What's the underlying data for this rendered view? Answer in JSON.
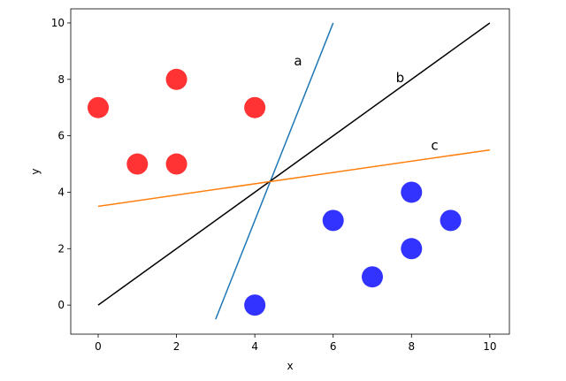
{
  "chart_data": {
    "type": "scatter",
    "xlabel": "x",
    "ylabel": "y",
    "xlim": [
      -0.7,
      10.5
    ],
    "ylim": [
      -1.03,
      10.5
    ],
    "xticks": [
      0,
      2,
      4,
      6,
      8,
      10
    ],
    "yticks": [
      0,
      2,
      4,
      6,
      8,
      10
    ],
    "series": [
      {
        "color": "#ff0000",
        "x": [
          0,
          1,
          2,
          2,
          4
        ],
        "y": [
          7,
          5,
          8,
          5,
          7
        ]
      },
      {
        "color": "#0000ff",
        "x": [
          4,
          6,
          7,
          8,
          8,
          9
        ],
        "y": [
          0,
          3,
          1,
          4,
          2,
          3
        ]
      }
    ],
    "lines": [
      {
        "color": "#1f77b4",
        "x": [
          3,
          6
        ],
        "y": [
          -0.5,
          10
        ]
      },
      {
        "color": "#000000",
        "x": [
          0,
          10
        ],
        "y": [
          0,
          10
        ]
      },
      {
        "color": "#ff7f0e",
        "x": [
          0,
          10
        ],
        "y": [
          3.5,
          5.5
        ]
      }
    ],
    "annotations": [
      {
        "text": "a",
        "x": 5,
        "y": 8.5
      },
      {
        "text": "b",
        "x": 7.6,
        "y": 7.9
      },
      {
        "text": "c",
        "x": 8.5,
        "y": 5.5
      }
    ]
  }
}
